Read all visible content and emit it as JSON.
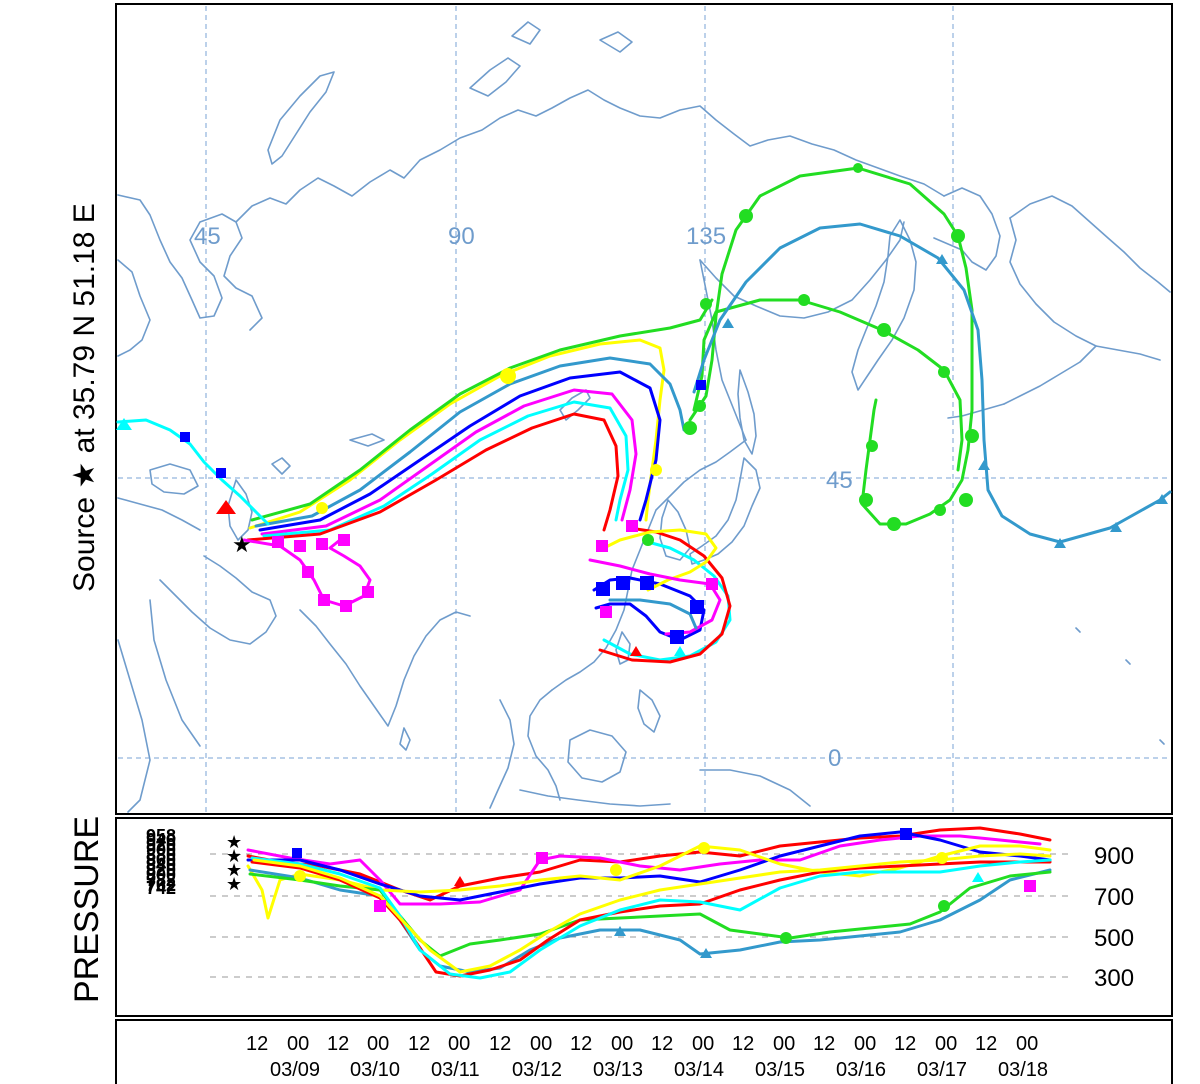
{
  "left_label": "Source ★  at  35.79 N   51.18 E",
  "map": {
    "longitude_labels": [
      "45",
      "90",
      "135"
    ],
    "latitude_labels": [
      "45",
      "0"
    ]
  },
  "trajectories": [
    {
      "color": "#ff0000",
      "marker": "triangle"
    },
    {
      "color": "#0000ff",
      "marker": "square"
    },
    {
      "color": "#00dd00",
      "marker": "circle"
    },
    {
      "color": "#00ffff",
      "marker": "triangle"
    },
    {
      "color": "#ff00ff",
      "marker": "square"
    },
    {
      "color": "#ffff00",
      "marker": "circle"
    },
    {
      "color": "#3399cc",
      "marker": "triangle"
    }
  ],
  "pressure_panel": {
    "title": "PRESSURE",
    "levels": [
      "900",
      "700",
      "500",
      "300"
    ],
    "start_heights": [
      "958",
      "940",
      "920",
      "900",
      "880",
      "860",
      "840",
      "820",
      "800",
      "782",
      "762",
      "742"
    ]
  },
  "time_axis": {
    "hours": [
      "12",
      "00",
      "12",
      "00",
      "12",
      "00",
      "12",
      "00",
      "12",
      "00",
      "12",
      "00",
      "12",
      "00",
      "12",
      "00",
      "12",
      "00",
      "12",
      "00"
    ],
    "dates": [
      "03/09",
      "03/10",
      "03/11",
      "03/12",
      "03/13",
      "03/14",
      "03/15",
      "03/16",
      "03/17",
      "03/18"
    ]
  }
}
